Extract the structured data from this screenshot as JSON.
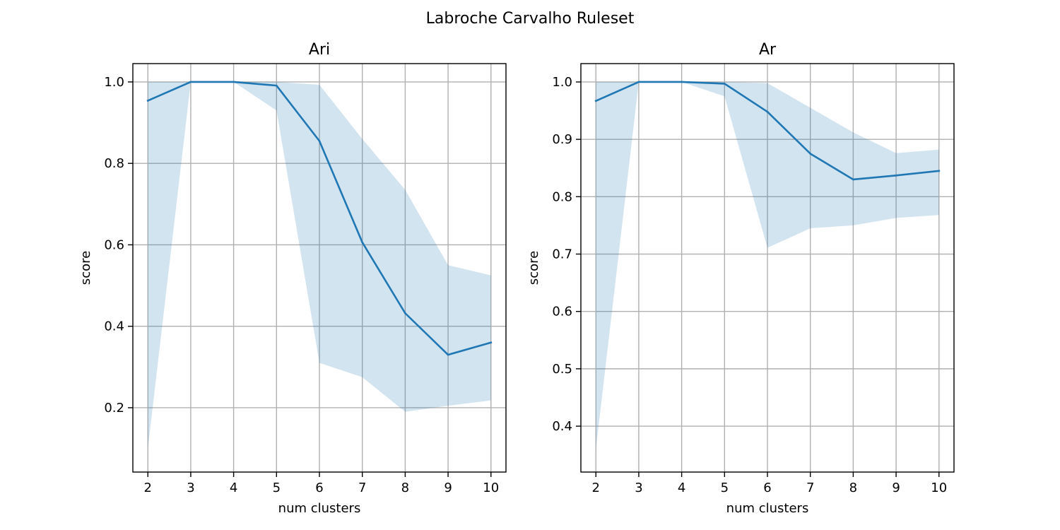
{
  "figure": {
    "title": "Labroche Carvalho Ruleset"
  },
  "chart_data": [
    {
      "type": "line",
      "title": "Ari",
      "xlabel": "num clusters",
      "ylabel": "score",
      "x": [
        2,
        3,
        4,
        5,
        6,
        7,
        8,
        9,
        10
      ],
      "xlim": [
        1.65,
        10.35
      ],
      "ylim": [
        0.042,
        1.045
      ],
      "xticks": [
        2,
        3,
        4,
        5,
        6,
        7,
        8,
        9,
        10
      ],
      "yticks": [
        0.2,
        0.4,
        0.6,
        0.8,
        1.0
      ],
      "ytick_labels": [
        "0.2",
        "0.4",
        "0.6",
        "0.8",
        "1.0"
      ],
      "grid": true,
      "series": [
        {
          "values": [
            0.954,
            1.0,
            1.0,
            0.991,
            0.855,
            0.606,
            0.432,
            0.33,
            0.36
          ],
          "band_upper": [
            1.0,
            1.0,
            1.0,
            1.0,
            0.993,
            0.86,
            0.735,
            0.55,
            0.525
          ],
          "band_lower": [
            0.1,
            1.0,
            1.0,
            0.93,
            0.31,
            0.275,
            0.19,
            0.205,
            0.218
          ],
          "color": "#1f77b4",
          "band_color": "#1f77b4"
        }
      ]
    },
    {
      "type": "line",
      "title": "Ar",
      "xlabel": "num clusters",
      "ylabel": "score",
      "x": [
        2,
        3,
        4,
        5,
        6,
        7,
        8,
        9,
        10
      ],
      "xlim": [
        1.65,
        10.35
      ],
      "ylim": [
        0.32,
        1.032
      ],
      "xticks": [
        2,
        3,
        4,
        5,
        6,
        7,
        8,
        9,
        10
      ],
      "yticks": [
        0.4,
        0.5,
        0.6,
        0.7,
        0.8,
        0.9,
        1.0
      ],
      "ytick_labels": [
        "0.4",
        "0.5",
        "0.6",
        "0.7",
        "0.8",
        "0.9",
        "1.0"
      ],
      "grid": true,
      "series": [
        {
          "values": [
            0.967,
            1.0,
            1.0,
            0.997,
            0.948,
            0.875,
            0.83,
            0.837,
            0.845
          ],
          "band_upper": [
            1.0,
            1.0,
            1.0,
            1.0,
            0.998,
            0.955,
            0.912,
            0.876,
            0.882
          ],
          "band_lower": [
            0.36,
            1.0,
            1.0,
            0.975,
            0.711,
            0.745,
            0.75,
            0.763,
            0.768
          ],
          "color": "#1f77b4",
          "band_color": "#1f77b4"
        }
      ]
    }
  ]
}
